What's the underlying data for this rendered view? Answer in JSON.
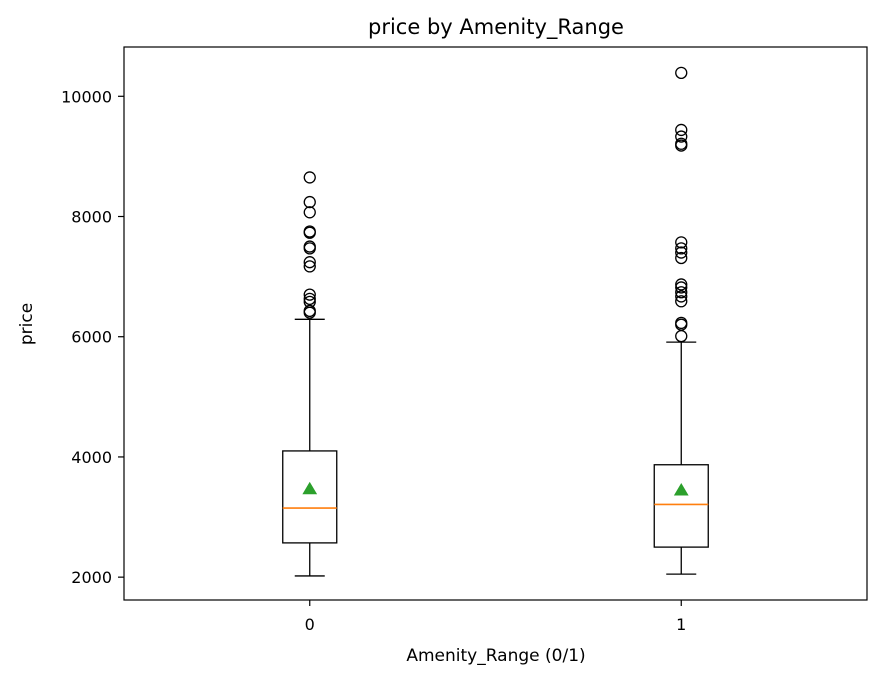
{
  "chart_data": {
    "type": "box",
    "title": "price by Amenity_Range",
    "xlabel": "Amenity_Range (0/1)",
    "ylabel": "price",
    "categories": [
      "0",
      "1"
    ],
    "ylim": [
      1620,
      10820
    ],
    "yticks": [
      2000,
      4000,
      6000,
      8000,
      10000
    ],
    "grid": false,
    "legend": "none",
    "colors": {
      "box": "#000000",
      "median": "#ff7f0e",
      "mean": "#2ca02c",
      "flier": "#000000"
    },
    "boxes": [
      {
        "category": "0",
        "whisker_low": 2020,
        "q1": 2570,
        "median": 3150,
        "q3": 4100,
        "whisker_high": 6290,
        "mean": 3470,
        "outliers": [
          6400,
          6430,
          6580,
          6630,
          6700,
          7170,
          7240,
          7470,
          7500,
          7730,
          7750,
          8070,
          8240,
          8650
        ]
      },
      {
        "category": "1",
        "whisker_low": 2050,
        "q1": 2500,
        "median": 3210,
        "q3": 3870,
        "whisker_high": 5910,
        "mean": 3450,
        "outliers": [
          6010,
          6200,
          6230,
          6590,
          6670,
          6740,
          6820,
          6870,
          7310,
          7400,
          7470,
          7570,
          9180,
          9210,
          9330,
          9440,
          10390
        ]
      }
    ]
  }
}
